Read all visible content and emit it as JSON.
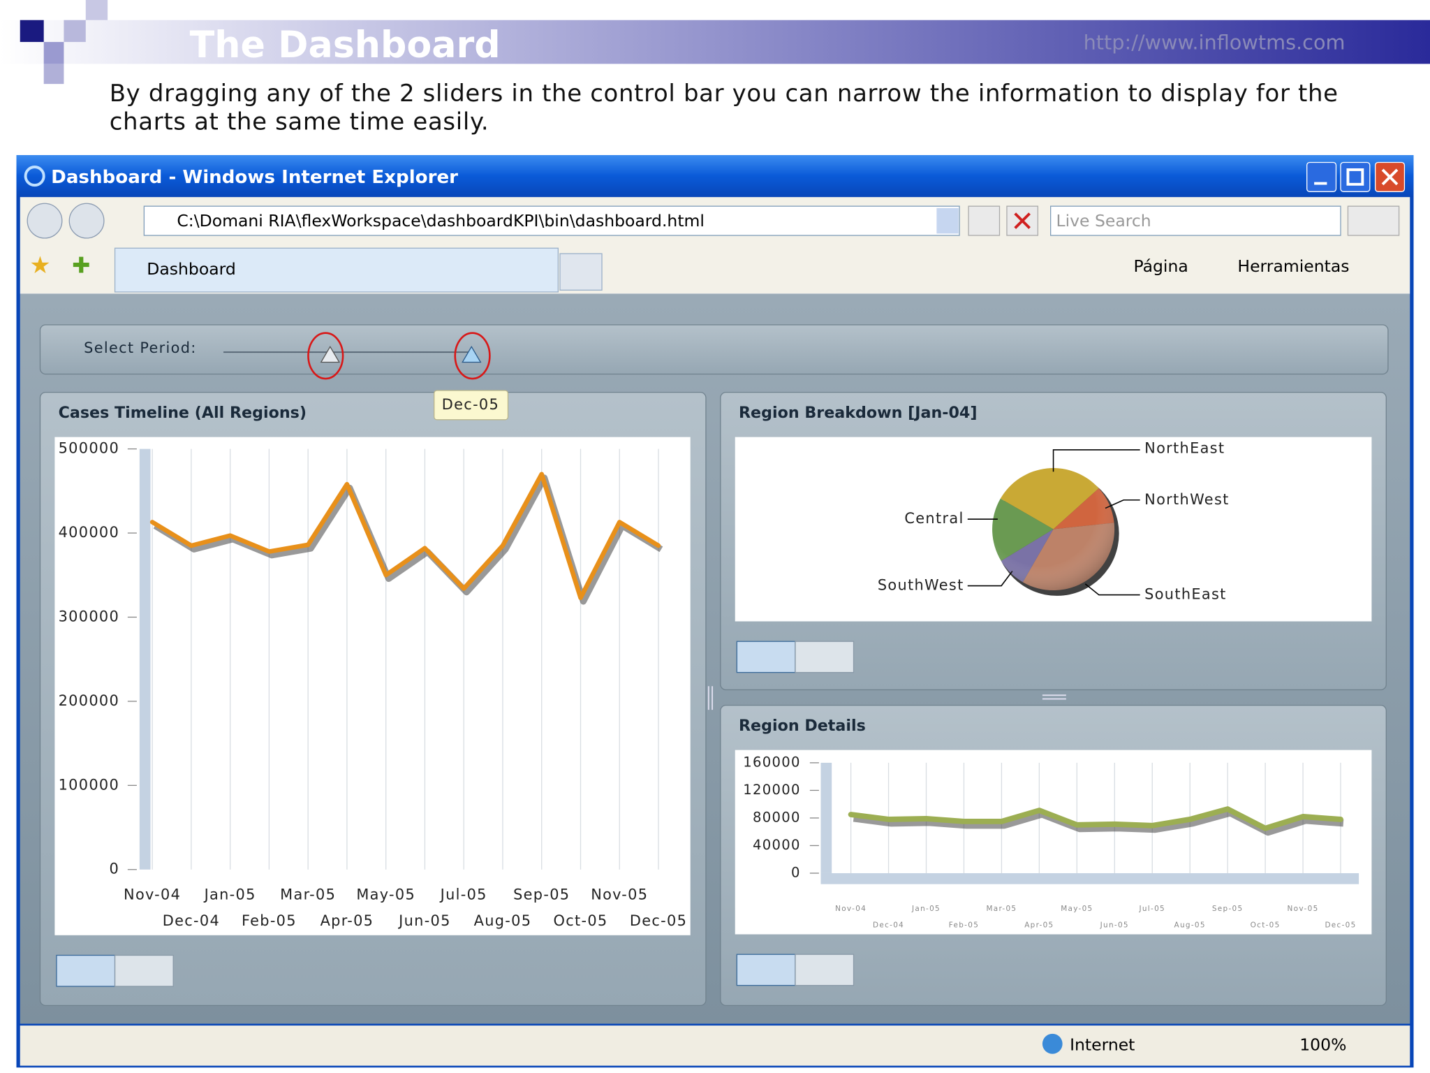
{
  "slide": {
    "title": "The Dashboard",
    "url": "http://www.inflowtms.com",
    "description": "By dragging any of the 2 sliders in the control bar you can narrow the information to display for the charts at the same time easily."
  },
  "browser": {
    "window_title": "Dashboard - Windows Internet Explorer",
    "address": "C:\\Domani RIA\\flexWorkspace\\dashboardKPI\\bin\\dashboard.html",
    "search_placeholder": "Live Search",
    "tab": "Dashboard",
    "menu": [
      "Página",
      "Herramientas"
    ],
    "status": "Internet",
    "zoom": "100%"
  },
  "dashboard": {
    "period_label": "Select Period:",
    "slider_tooltip": "Dec-05"
  },
  "chart_data": [
    {
      "type": "line",
      "title": "Cases Timeline (All Regions)",
      "categories": [
        "Nov-04",
        "Dec-04",
        "Jan-05",
        "Feb-05",
        "Mar-05",
        "Apr-05",
        "May-05",
        "Jun-05",
        "Jul-05",
        "Aug-05",
        "Sep-05",
        "Oct-05",
        "Nov-05",
        "Dec-05"
      ],
      "values": [
        413000,
        385000,
        397000,
        378000,
        386000,
        458000,
        350000,
        382000,
        334000,
        385000,
        470000,
        323000,
        413000,
        385000
      ],
      "color": "#e8901a",
      "ylim": [
        0,
        500000
      ],
      "yticks": [
        0,
        100000,
        200000,
        300000,
        400000,
        500000
      ],
      "grid": true
    },
    {
      "type": "pie",
      "title": "Region Breakdown [Jan-04]",
      "categories": [
        "NorthEast",
        "NorthWest",
        "SouthEast",
        "SouthWest",
        "Central"
      ],
      "values": [
        30,
        10,
        35,
        8,
        17
      ],
      "colors": [
        "#c9a935",
        "#d0653f",
        "#bd8268",
        "#7a72a6",
        "#6a9a52"
      ]
    },
    {
      "type": "line",
      "title": "Region Details",
      "categories": [
        "Nov-04",
        "Dec-04",
        "Jan-05",
        "Feb-05",
        "Mar-05",
        "Apr-05",
        "May-05",
        "Jun-05",
        "Jul-05",
        "Aug-05",
        "Sep-05",
        "Oct-05",
        "Nov-05",
        "Dec-05"
      ],
      "values": [
        85000,
        78000,
        79000,
        75000,
        75000,
        91000,
        70000,
        71000,
        69000,
        78000,
        93000,
        65000,
        82000,
        78000
      ],
      "color": "#9cae52",
      "ylim": [
        0,
        160000
      ],
      "yticks": [
        0,
        40000,
        80000,
        120000,
        160000
      ],
      "grid": true
    }
  ]
}
